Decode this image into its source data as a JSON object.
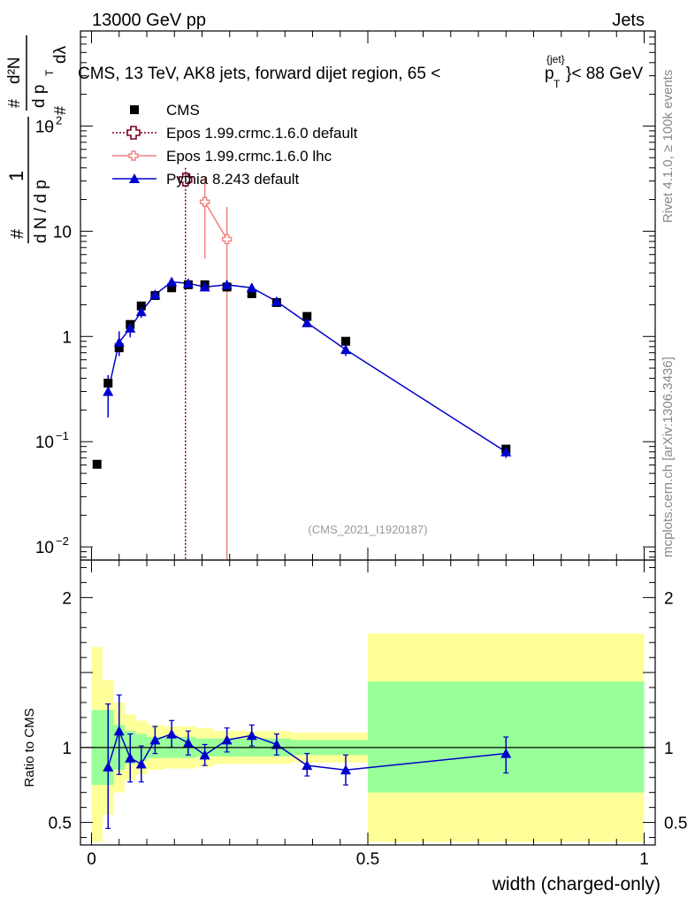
{
  "header": {
    "left": "13000 GeV pp",
    "right": "Jets"
  },
  "side_labels": {
    "rivet": "Rivet 4.1.0, ≥ 100k events",
    "mcplots": "mcplots.cern.ch [arXiv:1306.3436]"
  },
  "colors": {
    "cms": "#000000",
    "epos_default": "#7f0022",
    "epos_lhc": "#f08080",
    "pythia": "#0000cc",
    "band_outer": "#ffff99",
    "band_inner": "#99ff99"
  },
  "chart_data": [
    {
      "type": "scatter",
      "scale": "log",
      "title": "CMS, 13 TeV, AK8 jets, forward dijet region, 65 <",
      "title_pt": "p",
      "title_sup": "{jet}",
      "title_sub": "T",
      "title_end": "}< 88 GeV",
      "ylabel": "1/(dN/dp_T) d²N/(dp_T dλ)",
      "ylabel_parts": {
        "hash": "#",
        "one": "1",
        "dN": "d N / d p",
        "T": "T",
        "d2N": "d²N",
        "dp": "d p",
        "dlambda": "dλ"
      },
      "xlim": [
        -0.02,
        1.02
      ],
      "ylim": [
        0.0075,
        800
      ],
      "yticks": [
        {
          "v": 0.01,
          "base": "10",
          "exp": "−2"
        },
        {
          "v": 0.1,
          "base": "10",
          "exp": "−1"
        },
        {
          "v": 1,
          "label": "1"
        },
        {
          "v": 10,
          "label": "10"
        },
        {
          "v": 100,
          "base": "10",
          "exp": "2"
        }
      ],
      "watermark": "(CMS_2021_I1920187)",
      "legend": {
        "position": "top-left",
        "entries": [
          {
            "name": "CMS",
            "marker": "square"
          },
          {
            "name": "Epos 1.99.crmc.1.6.0 default",
            "marker": "cross-open",
            "line": "dotted"
          },
          {
            "name": "Epos 1.99.crmc.1.6.0 lhc",
            "marker": "cross-open",
            "line": "solid"
          },
          {
            "name": "Pythia 8.243 default",
            "marker": "triangle",
            "line": "solid"
          }
        ]
      },
      "series": [
        {
          "name": "CMS",
          "points": [
            {
              "x": 0.01,
              "y": 0.061
            },
            {
              "x": 0.03,
              "y": 0.36
            },
            {
              "x": 0.05,
              "y": 0.78
            },
            {
              "x": 0.07,
              "y": 1.3
            },
            {
              "x": 0.09,
              "y": 1.95
            },
            {
              "x": 0.115,
              "y": 2.45
            },
            {
              "x": 0.145,
              "y": 2.9
            },
            {
              "x": 0.175,
              "y": 3.1
            },
            {
              "x": 0.205,
              "y": 3.1
            },
            {
              "x": 0.245,
              "y": 2.95
            },
            {
              "x": 0.29,
              "y": 2.55
            },
            {
              "x": 0.335,
              "y": 2.1
            },
            {
              "x": 0.39,
              "y": 1.55
            },
            {
              "x": 0.46,
              "y": 0.9
            },
            {
              "x": 0.75,
              "y": 0.085
            }
          ]
        },
        {
          "name": "Epos 1.99.crmc.1.6.0 default",
          "points": [
            {
              "x": 0.17,
              "y": 31,
              "ylo": 0.0001,
              "yhi": 40
            }
          ]
        },
        {
          "name": "Epos 1.99.crmc.1.6.0 lhc",
          "points": [
            {
              "x": 0.205,
              "y": 19,
              "ylo": 5.5,
              "yhi": 33
            },
            {
              "x": 0.245,
              "y": 8.4,
              "ylo": 0.0001,
              "yhi": 17
            }
          ]
        },
        {
          "name": "Pythia 8.243 default",
          "points": [
            {
              "x": 0.03,
              "y": 0.3,
              "ylo": 0.17,
              "yhi": 0.43
            },
            {
              "x": 0.05,
              "y": 0.88,
              "ylo": 0.65,
              "yhi": 1.12
            },
            {
              "x": 0.07,
              "y": 1.2,
              "ylo": 0.98,
              "yhi": 1.42
            },
            {
              "x": 0.09,
              "y": 1.72,
              "ylo": 1.5,
              "yhi": 1.95
            },
            {
              "x": 0.115,
              "y": 2.5,
              "ylo": 2.3,
              "yhi": 2.7
            },
            {
              "x": 0.145,
              "y": 3.3,
              "ylo": 3.0,
              "yhi": 3.6
            },
            {
              "x": 0.175,
              "y": 3.2,
              "ylo": 2.95,
              "yhi": 3.45
            },
            {
              "x": 0.205,
              "y": 2.95,
              "ylo": 2.7,
              "yhi": 3.2
            },
            {
              "x": 0.245,
              "y": 3.1,
              "ylo": 2.85,
              "yhi": 3.35
            },
            {
              "x": 0.29,
              "y": 2.9,
              "ylo": 2.7,
              "yhi": 3.1
            },
            {
              "x": 0.335,
              "y": 2.15,
              "ylo": 2.0,
              "yhi": 2.3
            },
            {
              "x": 0.39,
              "y": 1.35,
              "ylo": 1.22,
              "yhi": 1.48
            },
            {
              "x": 0.46,
              "y": 0.75,
              "ylo": 0.65,
              "yhi": 0.86
            },
            {
              "x": 0.75,
              "y": 0.08,
              "ylo": 0.07,
              "yhi": 0.09
            }
          ]
        }
      ]
    },
    {
      "type": "scatter",
      "scale": "linear",
      "xlabel": "width (charged-only)",
      "ylabel": "Ratio to CMS",
      "xlim": [
        -0.02,
        1.02
      ],
      "ylim": [
        0.35,
        2.25
      ],
      "xticks": [
        {
          "v": 0,
          "label": "0"
        },
        {
          "v": 0.5,
          "label": "0.5"
        },
        {
          "v": 1,
          "label": "1"
        }
      ],
      "yticks": [
        {
          "v": 0.5,
          "label": "0.5"
        },
        {
          "v": 1,
          "label": "1"
        },
        {
          "v": 2,
          "label": "2"
        }
      ],
      "reference_line": 1,
      "bands": [
        {
          "x0": 0.0,
          "x1": 0.02,
          "ylo": 0.37,
          "yhi": 1.67,
          "ilo": 0.75,
          "ihi": 1.25
        },
        {
          "x0": 0.02,
          "x1": 0.04,
          "ylo": 0.55,
          "yhi": 1.45,
          "ilo": 0.75,
          "ihi": 1.25
        },
        {
          "x0": 0.04,
          "x1": 0.06,
          "ylo": 0.7,
          "yhi": 1.3,
          "ilo": 0.85,
          "ihi": 1.15
        },
        {
          "x0": 0.06,
          "x1": 0.08,
          "ylo": 0.78,
          "yhi": 1.22,
          "ilo": 0.89,
          "ihi": 1.11
        },
        {
          "x0": 0.08,
          "x1": 0.1,
          "ylo": 0.82,
          "yhi": 1.18,
          "ilo": 0.91,
          "ihi": 1.09
        },
        {
          "x0": 0.1,
          "x1": 0.13,
          "ylo": 0.85,
          "yhi": 1.15,
          "ilo": 0.93,
          "ihi": 1.07
        },
        {
          "x0": 0.13,
          "x1": 0.16,
          "ylo": 0.86,
          "yhi": 1.14,
          "ilo": 0.93,
          "ihi": 1.07
        },
        {
          "x0": 0.16,
          "x1": 0.19,
          "ylo": 0.86,
          "yhi": 1.14,
          "ilo": 0.93,
          "ihi": 1.07
        },
        {
          "x0": 0.19,
          "x1": 0.22,
          "ylo": 0.87,
          "yhi": 1.13,
          "ilo": 0.94,
          "ihi": 1.06
        },
        {
          "x0": 0.22,
          "x1": 0.27,
          "ylo": 0.89,
          "yhi": 1.11,
          "ilo": 0.94,
          "ihi": 1.06
        },
        {
          "x0": 0.27,
          "x1": 0.31,
          "ylo": 0.89,
          "yhi": 1.11,
          "ilo": 0.94,
          "ihi": 1.06
        },
        {
          "x0": 0.31,
          "x1": 0.36,
          "ylo": 0.89,
          "yhi": 1.11,
          "ilo": 0.94,
          "ihi": 1.06
        },
        {
          "x0": 0.36,
          "x1": 0.42,
          "ylo": 0.9,
          "yhi": 1.1,
          "ilo": 0.95,
          "ihi": 1.05
        },
        {
          "x0": 0.42,
          "x1": 0.5,
          "ylo": 0.9,
          "yhi": 1.1,
          "ilo": 0.95,
          "ihi": 1.05
        },
        {
          "x0": 0.5,
          "x1": 1.0,
          "ylo": 0.37,
          "yhi": 1.76,
          "ilo": 0.7,
          "ihi": 1.44
        }
      ],
      "series": [
        {
          "name": "Pythia 8.243 default",
          "points": [
            {
              "x": 0.03,
              "y": 0.87,
              "ylo": 0.46,
              "yhi": 1.29
            },
            {
              "x": 0.05,
              "y": 1.11,
              "ylo": 0.82,
              "yhi": 1.35
            },
            {
              "x": 0.07,
              "y": 0.93,
              "ylo": 0.77,
              "yhi": 1.09
            },
            {
              "x": 0.09,
              "y": 0.89,
              "ylo": 0.77,
              "yhi": 1.01
            },
            {
              "x": 0.115,
              "y": 1.05,
              "ylo": 0.96,
              "yhi": 1.14
            },
            {
              "x": 0.145,
              "y": 1.09,
              "ylo": 1.0,
              "yhi": 1.18
            },
            {
              "x": 0.175,
              "y": 1.03,
              "ylo": 0.95,
              "yhi": 1.11
            },
            {
              "x": 0.205,
              "y": 0.95,
              "ylo": 0.88,
              "yhi": 1.02
            },
            {
              "x": 0.245,
              "y": 1.05,
              "ylo": 0.97,
              "yhi": 1.13
            },
            {
              "x": 0.29,
              "y": 1.08,
              "ylo": 1.01,
              "yhi": 1.15
            },
            {
              "x": 0.335,
              "y": 1.02,
              "ylo": 0.95,
              "yhi": 1.09
            },
            {
              "x": 0.39,
              "y": 0.88,
              "ylo": 0.81,
              "yhi": 0.96
            },
            {
              "x": 0.46,
              "y": 0.85,
              "ylo": 0.75,
              "yhi": 0.95
            },
            {
              "x": 0.75,
              "y": 0.96,
              "ylo": 0.83,
              "yhi": 1.07
            }
          ]
        }
      ]
    }
  ]
}
